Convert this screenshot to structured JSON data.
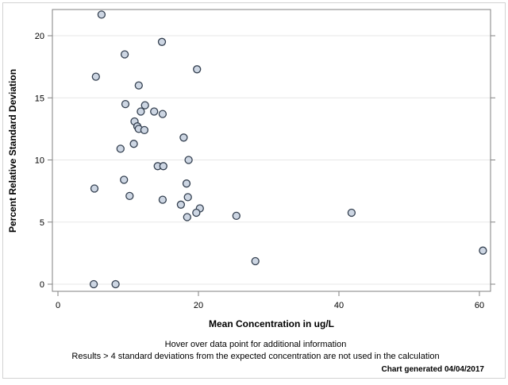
{
  "figure": {
    "background_color": "#ffffff",
    "border_color": "#d2d2d2"
  },
  "chart_data": {
    "type": "scatter",
    "title": "",
    "xlabel": "Mean Concentration in ug/L",
    "ylabel": "Percent Relative Standard Deviation",
    "xlim": [
      -0.8,
      61.6
    ],
    "ylim": [
      -0.6,
      22.1
    ],
    "x_ticks": [
      0,
      20,
      40,
      60
    ],
    "y_ticks": [
      0,
      5,
      10,
      15,
      20
    ],
    "grid": "horizontal-only",
    "legend": "none",
    "marker": {
      "shape": "circle",
      "fill_color": "#cdd6e3",
      "stroke_color": "#333f4f",
      "radius": 4.5
    },
    "points": [
      {
        "x": 6.2,
        "y": 21.7
      },
      {
        "x": 14.8,
        "y": 19.5
      },
      {
        "x": 9.5,
        "y": 18.5
      },
      {
        "x": 19.8,
        "y": 17.3
      },
      {
        "x": 5.4,
        "y": 16.7
      },
      {
        "x": 11.5,
        "y": 16.0
      },
      {
        "x": 9.6,
        "y": 14.5
      },
      {
        "x": 12.4,
        "y": 14.4
      },
      {
        "x": 11.8,
        "y": 13.9
      },
      {
        "x": 13.7,
        "y": 13.9
      },
      {
        "x": 14.9,
        "y": 13.7
      },
      {
        "x": 10.9,
        "y": 13.1
      },
      {
        "x": 11.3,
        "y": 12.7
      },
      {
        "x": 11.5,
        "y": 12.5
      },
      {
        "x": 12.3,
        "y": 12.4
      },
      {
        "x": 17.9,
        "y": 11.8
      },
      {
        "x": 10.8,
        "y": 11.3
      },
      {
        "x": 8.9,
        "y": 10.9
      },
      {
        "x": 18.6,
        "y": 10.0
      },
      {
        "x": 14.2,
        "y": 9.5
      },
      {
        "x": 15.0,
        "y": 9.5
      },
      {
        "x": 9.4,
        "y": 8.4
      },
      {
        "x": 18.3,
        "y": 8.1
      },
      {
        "x": 5.2,
        "y": 7.7
      },
      {
        "x": 10.2,
        "y": 7.1
      },
      {
        "x": 18.5,
        "y": 7.0
      },
      {
        "x": 14.9,
        "y": 6.8
      },
      {
        "x": 17.5,
        "y": 6.4
      },
      {
        "x": 20.2,
        "y": 6.1
      },
      {
        "x": 19.7,
        "y": 5.75
      },
      {
        "x": 18.4,
        "y": 5.4
      },
      {
        "x": 25.4,
        "y": 5.5
      },
      {
        "x": 41.8,
        "y": 5.75
      },
      {
        "x": 28.1,
        "y": 1.85
      },
      {
        "x": 60.5,
        "y": 2.7
      },
      {
        "x": 5.1,
        "y": 0.0
      },
      {
        "x": 8.2,
        "y": 0.0
      }
    ],
    "axis_colors": {
      "frame": "#828282",
      "gridline": "#e7e7e7",
      "tick_mark": "#828282",
      "text": "#000000"
    }
  },
  "captions": {
    "hover_note": "Hover over data point for additional information",
    "exclusion_note": "Results > 4 standard deviations from the expected concentration are not used in the calculation",
    "generated_note": "Chart generated 04/04/2017"
  }
}
